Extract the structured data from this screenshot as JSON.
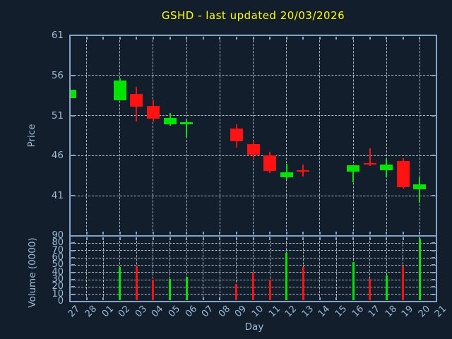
{
  "title": "GSHD - last updated 20/03/2026",
  "colors": {
    "background": "#121e2c",
    "border_axis": "#83a3c8",
    "labels": "#9fbad6",
    "title": "#ffff00",
    "grid": "#ced6de",
    "up_candle": "#00e400",
    "down_candle": "#ff1212"
  },
  "chart_data": {
    "type": "candlestick",
    "subtype": "candlestick-with-volume-impulses",
    "title": "GSHD - last updated 20/03/2026",
    "xlabel": "Day",
    "legend": "none",
    "grid": "dashed",
    "price_axis": {
      "label": "Price",
      "range": [
        36,
        61
      ],
      "ticks": [
        41,
        46,
        51,
        56,
        61
      ],
      "gridlines_at": [
        41,
        46,
        51,
        56
      ]
    },
    "volume_axis": {
      "label": "Volume (0000)",
      "range": [
        0,
        90
      ],
      "ticks": [
        0,
        10,
        20,
        30,
        40,
        50,
        60,
        70,
        80,
        90
      ],
      "gridlines_at": [
        10,
        20,
        30,
        40,
        50,
        60,
        70,
        80
      ]
    },
    "days": [
      "27",
      "28",
      "01",
      "02",
      "03",
      "04",
      "05",
      "06",
      "07",
      "08",
      "09",
      "10",
      "11",
      "12",
      "13",
      "14",
      "15",
      "16",
      "17",
      "18",
      "19",
      "20",
      "21"
    ],
    "price_grid_days": [
      "28",
      "02",
      "04",
      "06",
      "08",
      "10",
      "12",
      "14",
      "16",
      "18",
      "20"
    ],
    "candles": [
      {
        "day": "27",
        "open": 53.2,
        "high": 54.2,
        "low": 53.2,
        "close": 54.2,
        "direction": "up",
        "volume": null
      },
      {
        "day": "02",
        "open": 52.9,
        "high": 55.6,
        "low": 52.9,
        "close": 55.4,
        "direction": "up",
        "volume": 47
      },
      {
        "day": "03",
        "open": 53.7,
        "high": 54.6,
        "low": 50.3,
        "close": 52.1,
        "direction": "down",
        "volume": 48
      },
      {
        "day": "04",
        "open": 52.2,
        "high": 52.9,
        "low": 50.3,
        "close": 50.6,
        "direction": "down",
        "volume": 30
      },
      {
        "day": "05",
        "open": 49.9,
        "high": 51.3,
        "low": 49.7,
        "close": 50.7,
        "direction": "up",
        "volume": 31
      },
      {
        "day": "06",
        "open": 49.9,
        "high": 50.5,
        "low": 48.3,
        "close": 50.2,
        "direction": "up",
        "volume": 34
      },
      {
        "day": "09",
        "open": 49.4,
        "high": 49.9,
        "low": 47.0,
        "close": 47.8,
        "direction": "down",
        "volume": 24
      },
      {
        "day": "10",
        "open": 47.4,
        "high": 47.9,
        "low": 45.5,
        "close": 46.1,
        "direction": "down",
        "volume": 40
      },
      {
        "day": "11",
        "open": 46.0,
        "high": 46.5,
        "low": 43.8,
        "close": 44.1,
        "direction": "down",
        "volume": 30
      },
      {
        "day": "12",
        "open": 43.3,
        "high": 45.0,
        "low": 43.0,
        "close": 43.9,
        "direction": "up",
        "volume": 67
      },
      {
        "day": "13",
        "open": 44.2,
        "high": 44.9,
        "low": 43.4,
        "close": 44.0,
        "direction": "down",
        "volume": 47
      },
      {
        "day": "16",
        "open": 44.0,
        "high": 44.8,
        "low": 42.7,
        "close": 44.8,
        "direction": "up",
        "volume": 54
      },
      {
        "day": "17",
        "open": 45.1,
        "high": 46.9,
        "low": 44.7,
        "close": 44.9,
        "direction": "down",
        "volume": 31
      },
      {
        "day": "18",
        "open": 44.2,
        "high": 45.6,
        "low": 43.3,
        "close": 44.9,
        "direction": "up",
        "volume": 36
      },
      {
        "day": "19",
        "open": 45.3,
        "high": 45.7,
        "low": 41.9,
        "close": 42.1,
        "direction": "down",
        "volume": 48
      },
      {
        "day": "20",
        "open": 41.8,
        "high": 43.3,
        "low": 40.1,
        "close": 42.4,
        "direction": "up",
        "volume": 86
      }
    ]
  }
}
